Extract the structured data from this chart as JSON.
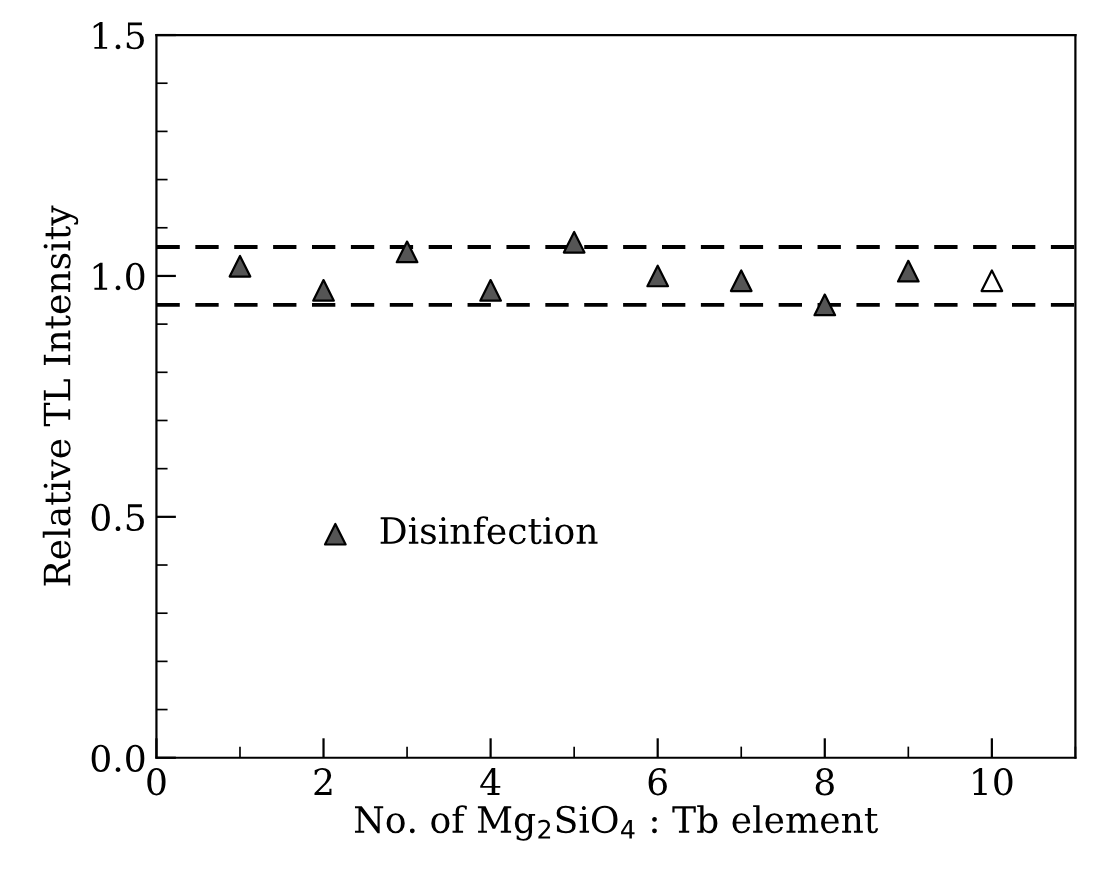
{
  "chart_data": {
    "type": "scatter",
    "xlabel": "No. of Mg$_{2}$SiO$_{4}$ : Tb element",
    "ylabel": "Relative TL Intensity",
    "x": [
      1,
      2,
      3,
      4,
      5,
      6,
      7,
      8,
      9,
      10
    ],
    "series": [
      {
        "name": "Disinfection",
        "color": "#555555",
        "values": [
          1.02,
          0.97,
          1.05,
          0.97,
          1.07,
          1.0,
          0.99,
          0.94,
          1.01,
          0.99
        ],
        "colors": [
          "#555555",
          "#555555",
          "#555555",
          "#555555",
          "#555555",
          "#555555",
          "#555555",
          "#555555",
          "#555555",
          "#ffffff"
        ]
      }
    ],
    "xlim": [
      0,
      11
    ],
    "xticks": [
      0,
      2,
      4,
      6,
      8,
      10
    ],
    "ylim": [
      0,
      1.5
    ],
    "yticks": [
      {
        "value": 0,
        "label": "0.0"
      },
      {
        "value": 0.5,
        "label": "0.5"
      },
      {
        "value": 1.0,
        "label": "1.0"
      },
      {
        "value": 1.5,
        "label": "1.5"
      }
    ],
    "ref_lines": [
      {
        "axis": "y",
        "value": 1.06,
        "line_style": "dashed",
        "color": "#000000"
      },
      {
        "axis": "y",
        "value": 0.94,
        "line_style": "dashed",
        "color": "#000000"
      }
    ],
    "marker": "triangle",
    "legend": "center left",
    "grid": false
  }
}
